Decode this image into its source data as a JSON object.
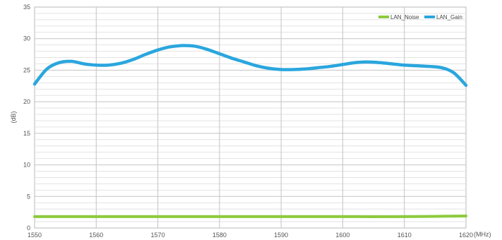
{
  "chart_data": {
    "type": "line",
    "title": "",
    "xlabel": "(MHz)",
    "ylabel": "(dB)",
    "xlim": [
      1550,
      1620
    ],
    "ylim": [
      0,
      35
    ],
    "x_ticks": [
      "1550",
      "1560",
      "1570",
      "1580",
      "1590",
      "1600",
      "1610",
      "1620"
    ],
    "y_ticks": [
      "0",
      "5",
      "10",
      "15",
      "20",
      "25",
      "30",
      "35"
    ],
    "grid": true,
    "legend_position": "top-right",
    "series": [
      {
        "name": "LAN_Noise",
        "color": "#8CCB3C",
        "x": [
          1550,
          1560,
          1570,
          1580,
          1590,
          1600,
          1610,
          1620
        ],
        "y": [
          1.8,
          1.8,
          1.8,
          1.8,
          1.8,
          1.8,
          1.8,
          1.9
        ]
      },
      {
        "name": "LAN_Gain",
        "color": "#2AA6DE",
        "x": [
          1550,
          1552,
          1554,
          1556,
          1558,
          1560,
          1562,
          1564,
          1566,
          1568,
          1570,
          1572,
          1574,
          1576,
          1578,
          1580,
          1582,
          1584,
          1586,
          1588,
          1590,
          1592,
          1594,
          1596,
          1598,
          1600,
          1602,
          1604,
          1606,
          1608,
          1610,
          1612,
          1614,
          1616,
          1618,
          1620
        ],
        "y": [
          22.8,
          25.2,
          26.2,
          26.4,
          26.0,
          25.8,
          25.8,
          26.1,
          26.7,
          27.5,
          28.2,
          28.7,
          28.9,
          28.8,
          28.3,
          27.6,
          26.9,
          26.3,
          25.7,
          25.3,
          25.1,
          25.1,
          25.2,
          25.4,
          25.6,
          25.9,
          26.2,
          26.3,
          26.2,
          26.0,
          25.8,
          25.7,
          25.6,
          25.4,
          24.6,
          22.6
        ]
      }
    ]
  }
}
